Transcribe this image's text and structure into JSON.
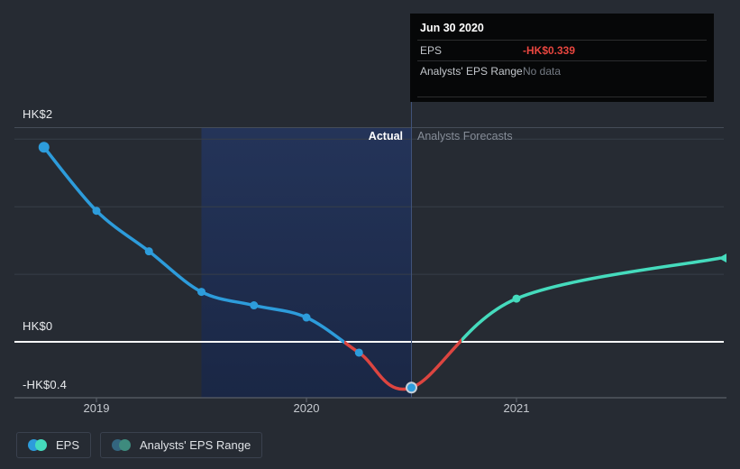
{
  "page": {
    "background": "#262B33"
  },
  "tooltip": {
    "title": "Jun 30 2020",
    "rows": [
      {
        "label": "EPS",
        "value": "-HK$0.339",
        "value_color": "#E8463F",
        "value_bold": true
      },
      {
        "label": "Analysts' EPS Range",
        "value": "No data",
        "value_color": "#757B84",
        "value_bold": false
      }
    ]
  },
  "annotations": {
    "actual": "Actual",
    "forecasts": "Analysts Forecasts"
  },
  "legend": [
    {
      "label": "EPS",
      "icon_colors": [
        "#2D9CDB",
        "#45DBBD"
      ]
    },
    {
      "label": "Analysts' EPS Range",
      "icon_colors": [
        "#33657F",
        "#3E8B7E"
      ]
    }
  ],
  "chart_data": {
    "type": "line",
    "x_axis": {
      "tick_labels": [
        "2019",
        "2020",
        "2021"
      ],
      "tick_positions_t": [
        0,
        1,
        2
      ],
      "t_unit": "years since Jan 1 2019"
    },
    "y_axis": {
      "label_top": "HK$2",
      "label_zero": "HK$0",
      "label_bottom": "-HK$0.4",
      "gridline_values": [
        1.5,
        1.0,
        0.5
      ],
      "zero_line": true,
      "unit": "HK$"
    },
    "series": [
      {
        "name": "EPS",
        "kind": "actual",
        "line_color": "#2D9CDB",
        "below_zero_color": "#DC4540",
        "points": [
          {
            "t": -0.25,
            "value": 1.44
          },
          {
            "t": 0.0,
            "value": 0.97
          },
          {
            "t": 0.25,
            "value": 0.67
          },
          {
            "t": 0.5,
            "value": 0.37
          },
          {
            "t": 0.75,
            "value": 0.27
          },
          {
            "t": 1.0,
            "value": 0.18
          },
          {
            "t": 1.25,
            "value": -0.08
          },
          {
            "t": 1.5,
            "value": -0.339,
            "date": "Jun 30 2020",
            "highlighted": true
          }
        ]
      },
      {
        "name": "Analysts Forecasts",
        "kind": "forecast",
        "line_color": "#45DBBD",
        "points": [
          {
            "t": 2.0,
            "value": 0.32
          },
          {
            "t": 2.97,
            "value": 0.62
          }
        ]
      }
    ],
    "highlight_band_t": [
      0.5,
      1.5
    ],
    "divider_t": 1.5,
    "colors": {
      "band_top": "#243459",
      "band_bottom": "#1A2745",
      "divider": "#415379",
      "grid": "#373E48",
      "plot_top_border": "#454C58",
      "axis": "#5A6069",
      "zero_line": "#F8F9FA",
      "highlight_ring": "#C7D0D9"
    }
  }
}
